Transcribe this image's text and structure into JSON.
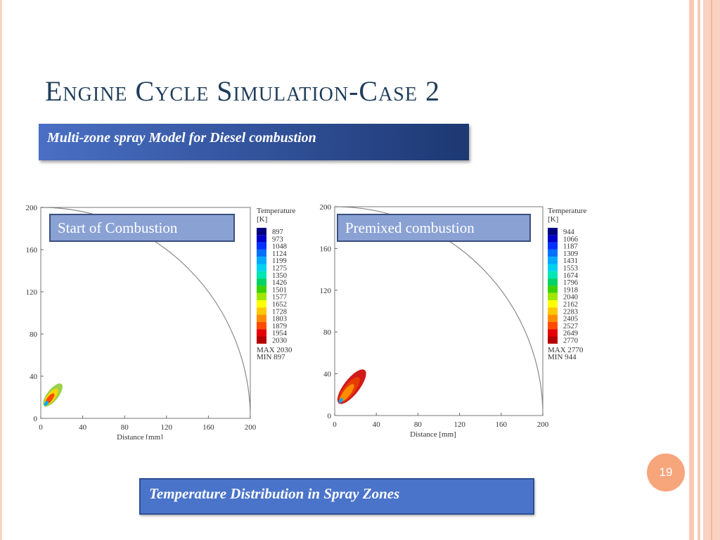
{
  "slide": {
    "title": "Engine Cycle Simulation-Case 2",
    "subtitle": "Multi-zone spray Model for Diesel combustion",
    "caption": "Temperature Distribution in Spray Zones",
    "page_number": "19",
    "colors": {
      "title": "#1f3d5a",
      "banner": "#3556a0",
      "caption_box": "#4a74c9",
      "page_badge": "#f7a57b",
      "stripes": "#f8c9b5"
    }
  },
  "chart_data": [
    {
      "type": "heatmap",
      "title": "Start of Combustion",
      "xlabel": "Distance [mm]",
      "ylabel": "",
      "xlim": [
        0,
        200
      ],
      "ylim": [
        0,
        200
      ],
      "x_ticks": [
        "0",
        "40",
        "80",
        "120",
        "160",
        "200"
      ],
      "y_ticks": [
        "0",
        "40",
        "80",
        "120",
        "160",
        "200"
      ],
      "legend": {
        "title_line1": "Temperature",
        "title_line2": "[K]",
        "levels": [
          "897",
          "973",
          "1048",
          "1124",
          "1199",
          "1275",
          "1350",
          "1426",
          "1501",
          "1577",
          "1652",
          "1728",
          "1803",
          "1879",
          "1954",
          "2030"
        ],
        "max_text": "MAX  2030",
        "min_text": "MIN   897"
      }
    },
    {
      "type": "heatmap",
      "title": "Premixed combustion",
      "xlabel": "Distance [mm]",
      "ylabel": "",
      "xlim": [
        0,
        200
      ],
      "ylim": [
        0,
        200
      ],
      "x_ticks": [
        "0",
        "40",
        "80",
        "120",
        "160",
        "200"
      ],
      "y_ticks": [
        "0",
        "40",
        "80",
        "120",
        "160",
        "200"
      ],
      "legend": {
        "title_line1": "Temperature",
        "title_line2": "[K]",
        "levels": [
          "944",
          "1066",
          "1187",
          "1309",
          "1431",
          "1553",
          "1674",
          "1796",
          "1918",
          "2040",
          "2162",
          "2283",
          "2405",
          "2527",
          "2649",
          "2770"
        ],
        "max_text": "MAX  2770",
        "min_text": "MIN   944"
      }
    }
  ]
}
